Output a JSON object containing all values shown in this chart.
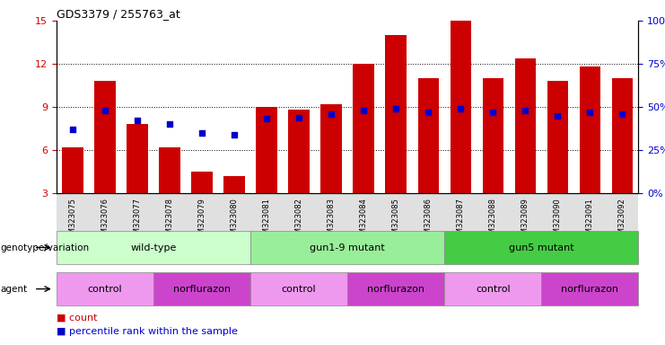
{
  "title": "GDS3379 / 255763_at",
  "samples": [
    "GSM323075",
    "GSM323076",
    "GSM323077",
    "GSM323078",
    "GSM323079",
    "GSM323080",
    "GSM323081",
    "GSM323082",
    "GSM323083",
    "GSM323084",
    "GSM323085",
    "GSM323086",
    "GSM323087",
    "GSM323088",
    "GSM323089",
    "GSM323090",
    "GSM323091",
    "GSM323092"
  ],
  "counts": [
    6.2,
    10.8,
    7.8,
    6.2,
    4.5,
    4.2,
    9.0,
    8.8,
    9.2,
    12.0,
    14.0,
    11.0,
    15.0,
    11.0,
    12.4,
    10.8,
    11.8,
    11.0
  ],
  "percentile_ranks": [
    37,
    48,
    42,
    40,
    35,
    34,
    43,
    44,
    46,
    48,
    49,
    47,
    49,
    47,
    48,
    45,
    47,
    46
  ],
  "ylim_left": [
    3,
    15
  ],
  "ylim_right": [
    0,
    100
  ],
  "yticks_left": [
    3,
    6,
    9,
    12,
    15
  ],
  "yticks_right": [
    0,
    25,
    50,
    75,
    100
  ],
  "ytick_labels_right": [
    "0%",
    "25%",
    "50%",
    "75%",
    "100%"
  ],
  "bar_color": "#cc0000",
  "dot_color": "#0000cc",
  "genotype_groups": [
    {
      "label": "wild-type",
      "start": 0,
      "end": 5,
      "color": "#ccffcc"
    },
    {
      "label": "gun1-9 mutant",
      "start": 6,
      "end": 11,
      "color": "#99ee99"
    },
    {
      "label": "gun5 mutant",
      "start": 12,
      "end": 17,
      "color": "#44cc44"
    }
  ],
  "agent_groups": [
    {
      "label": "control",
      "start": 0,
      "end": 2,
      "color": "#ee99ee"
    },
    {
      "label": "norflurazon",
      "start": 3,
      "end": 5,
      "color": "#cc44cc"
    },
    {
      "label": "control",
      "start": 6,
      "end": 8,
      "color": "#ee99ee"
    },
    {
      "label": "norflurazon",
      "start": 9,
      "end": 11,
      "color": "#cc44cc"
    },
    {
      "label": "control",
      "start": 12,
      "end": 14,
      "color": "#ee99ee"
    },
    {
      "label": "norflurazon",
      "start": 15,
      "end": 17,
      "color": "#cc44cc"
    }
  ],
  "tick_label_color_left": "#cc0000",
  "tick_label_color_right": "#0000cc",
  "xtick_bg": "#dddddd"
}
